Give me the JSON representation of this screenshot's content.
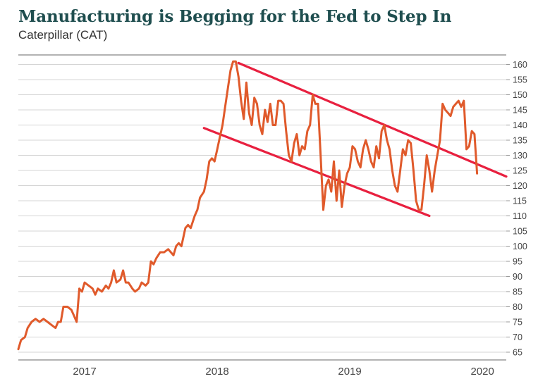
{
  "title": "Manufacturing is Begging for the Fed to Step In",
  "subtitle": "Caterpillar (CAT)",
  "chart_data": {
    "type": "line",
    "title": "Manufacturing is Begging for the Fed to Step In",
    "subtitle": "Caterpillar (CAT)",
    "xlabel": "",
    "ylabel": "",
    "xlim": [
      2016.5,
      2020.18
    ],
    "ylim": [
      65,
      162
    ],
    "y_ticks": [
      65,
      70,
      75,
      80,
      85,
      90,
      95,
      100,
      105,
      110,
      115,
      120,
      125,
      130,
      135,
      140,
      145,
      150,
      155,
      160
    ],
    "y_tick_labels": [
      "65",
      "70",
      "75",
      "80",
      "85",
      "90",
      "95",
      "100",
      "105",
      "110",
      "115",
      "120",
      "125",
      "130",
      "135",
      "140",
      "145",
      "150",
      "155",
      "160"
    ],
    "x_ticks": [
      2017,
      2018,
      2019,
      2020
    ],
    "x_tick_labels": [
      "2017",
      "2018",
      "2019",
      "2020"
    ],
    "y_axis_position": "right",
    "grid": "horizontal",
    "legend": "none",
    "series_color": "#e05a2b",
    "trendline_color": "#e8203f",
    "series": [
      {
        "values": [
          [
            2016.5,
            66
          ],
          [
            2016.52,
            69
          ],
          [
            2016.55,
            70
          ],
          [
            2016.57,
            73
          ],
          [
            2016.6,
            75
          ],
          [
            2016.63,
            76
          ],
          [
            2016.66,
            75
          ],
          [
            2016.69,
            76
          ],
          [
            2016.72,
            75
          ],
          [
            2016.75,
            74
          ],
          [
            2016.78,
            73
          ],
          [
            2016.8,
            75
          ],
          [
            2016.82,
            75
          ],
          [
            2016.84,
            80
          ],
          [
            2016.87,
            80
          ],
          [
            2016.9,
            79
          ],
          [
            2016.92,
            77
          ],
          [
            2016.94,
            75
          ],
          [
            2016.96,
            86
          ],
          [
            2016.98,
            85
          ],
          [
            2017.0,
            88
          ],
          [
            2017.03,
            87
          ],
          [
            2017.06,
            86
          ],
          [
            2017.08,
            84
          ],
          [
            2017.1,
            86
          ],
          [
            2017.13,
            85
          ],
          [
            2017.16,
            87
          ],
          [
            2017.18,
            86
          ],
          [
            2017.2,
            88
          ],
          [
            2017.22,
            92
          ],
          [
            2017.24,
            88
          ],
          [
            2017.27,
            89
          ],
          [
            2017.29,
            92
          ],
          [
            2017.31,
            88
          ],
          [
            2017.33,
            88
          ],
          [
            2017.36,
            86
          ],
          [
            2017.38,
            85
          ],
          [
            2017.41,
            86
          ],
          [
            2017.43,
            88
          ],
          [
            2017.46,
            87
          ],
          [
            2017.48,
            88
          ],
          [
            2017.5,
            95
          ],
          [
            2017.52,
            94
          ],
          [
            2017.54,
            96
          ],
          [
            2017.57,
            98
          ],
          [
            2017.6,
            98
          ],
          [
            2017.63,
            99
          ],
          [
            2017.65,
            98
          ],
          [
            2017.67,
            97
          ],
          [
            2017.69,
            100
          ],
          [
            2017.71,
            101
          ],
          [
            2017.73,
            100
          ],
          [
            2017.76,
            106
          ],
          [
            2017.78,
            107
          ],
          [
            2017.8,
            106
          ],
          [
            2017.83,
            110
          ],
          [
            2017.85,
            112
          ],
          [
            2017.87,
            116
          ],
          [
            2017.9,
            118
          ],
          [
            2017.92,
            122
          ],
          [
            2017.94,
            128
          ],
          [
            2017.96,
            129
          ],
          [
            2017.98,
            128
          ],
          [
            2018.0,
            132
          ],
          [
            2018.02,
            136
          ],
          [
            2018.04,
            140
          ],
          [
            2018.06,
            146
          ],
          [
            2018.08,
            152
          ],
          [
            2018.1,
            158
          ],
          [
            2018.12,
            161
          ],
          [
            2018.14,
            161
          ],
          [
            2018.16,
            156
          ],
          [
            2018.18,
            148
          ],
          [
            2018.2,
            142
          ],
          [
            2018.22,
            154
          ],
          [
            2018.24,
            144
          ],
          [
            2018.26,
            140
          ],
          [
            2018.28,
            149
          ],
          [
            2018.3,
            147
          ],
          [
            2018.32,
            140
          ],
          [
            2018.34,
            137
          ],
          [
            2018.36,
            145
          ],
          [
            2018.38,
            141
          ],
          [
            2018.4,
            147
          ],
          [
            2018.42,
            140
          ],
          [
            2018.44,
            140
          ],
          [
            2018.46,
            148
          ],
          [
            2018.48,
            148
          ],
          [
            2018.5,
            147
          ],
          [
            2018.52,
            138
          ],
          [
            2018.54,
            130
          ],
          [
            2018.56,
            128
          ],
          [
            2018.58,
            134
          ],
          [
            2018.6,
            137
          ],
          [
            2018.62,
            130
          ],
          [
            2018.64,
            133
          ],
          [
            2018.66,
            132
          ],
          [
            2018.68,
            138
          ],
          [
            2018.7,
            140
          ],
          [
            2018.72,
            150
          ],
          [
            2018.74,
            147
          ],
          [
            2018.76,
            147
          ],
          [
            2018.78,
            130
          ],
          [
            2018.8,
            112
          ],
          [
            2018.82,
            120
          ],
          [
            2018.84,
            122
          ],
          [
            2018.86,
            118
          ],
          [
            2018.88,
            128
          ],
          [
            2018.9,
            115
          ],
          [
            2018.92,
            125
          ],
          [
            2018.94,
            113
          ],
          [
            2018.96,
            120
          ],
          [
            2018.98,
            124
          ],
          [
            2019.0,
            126
          ],
          [
            2019.02,
            133
          ],
          [
            2019.04,
            132
          ],
          [
            2019.06,
            128
          ],
          [
            2019.08,
            126
          ],
          [
            2019.1,
            132
          ],
          [
            2019.12,
            135
          ],
          [
            2019.14,
            132
          ],
          [
            2019.16,
            128
          ],
          [
            2019.18,
            126
          ],
          [
            2019.2,
            133
          ],
          [
            2019.22,
            129
          ],
          [
            2019.24,
            138
          ],
          [
            2019.26,
            140
          ],
          [
            2019.28,
            135
          ],
          [
            2019.3,
            132
          ],
          [
            2019.32,
            125
          ],
          [
            2019.34,
            120
          ],
          [
            2019.36,
            118
          ],
          [
            2019.38,
            125
          ],
          [
            2019.4,
            132
          ],
          [
            2019.42,
            130
          ],
          [
            2019.44,
            135
          ],
          [
            2019.46,
            134
          ],
          [
            2019.48,
            125
          ],
          [
            2019.5,
            115
          ],
          [
            2019.52,
            112
          ],
          [
            2019.54,
            112
          ],
          [
            2019.56,
            120
          ],
          [
            2019.58,
            130
          ],
          [
            2019.6,
            125
          ],
          [
            2019.62,
            118
          ],
          [
            2019.64,
            125
          ],
          [
            2019.66,
            130
          ],
          [
            2019.68,
            135
          ],
          [
            2019.7,
            147
          ],
          [
            2019.72,
            145
          ],
          [
            2019.74,
            144
          ],
          [
            2019.76,
            143
          ],
          [
            2019.78,
            146
          ],
          [
            2019.8,
            147
          ],
          [
            2019.82,
            148
          ],
          [
            2019.84,
            146
          ],
          [
            2019.86,
            148
          ],
          [
            2019.88,
            132
          ],
          [
            2019.9,
            133
          ],
          [
            2019.92,
            138
          ],
          [
            2019.94,
            137
          ],
          [
            2019.96,
            124
          ]
        ]
      }
    ],
    "trendlines": [
      {
        "x": [
          2018.16,
          2020.18
        ],
        "y": [
          160.5,
          123
        ]
      },
      {
        "x": [
          2017.9,
          2019.6
        ],
        "y": [
          139,
          110
        ]
      }
    ]
  }
}
